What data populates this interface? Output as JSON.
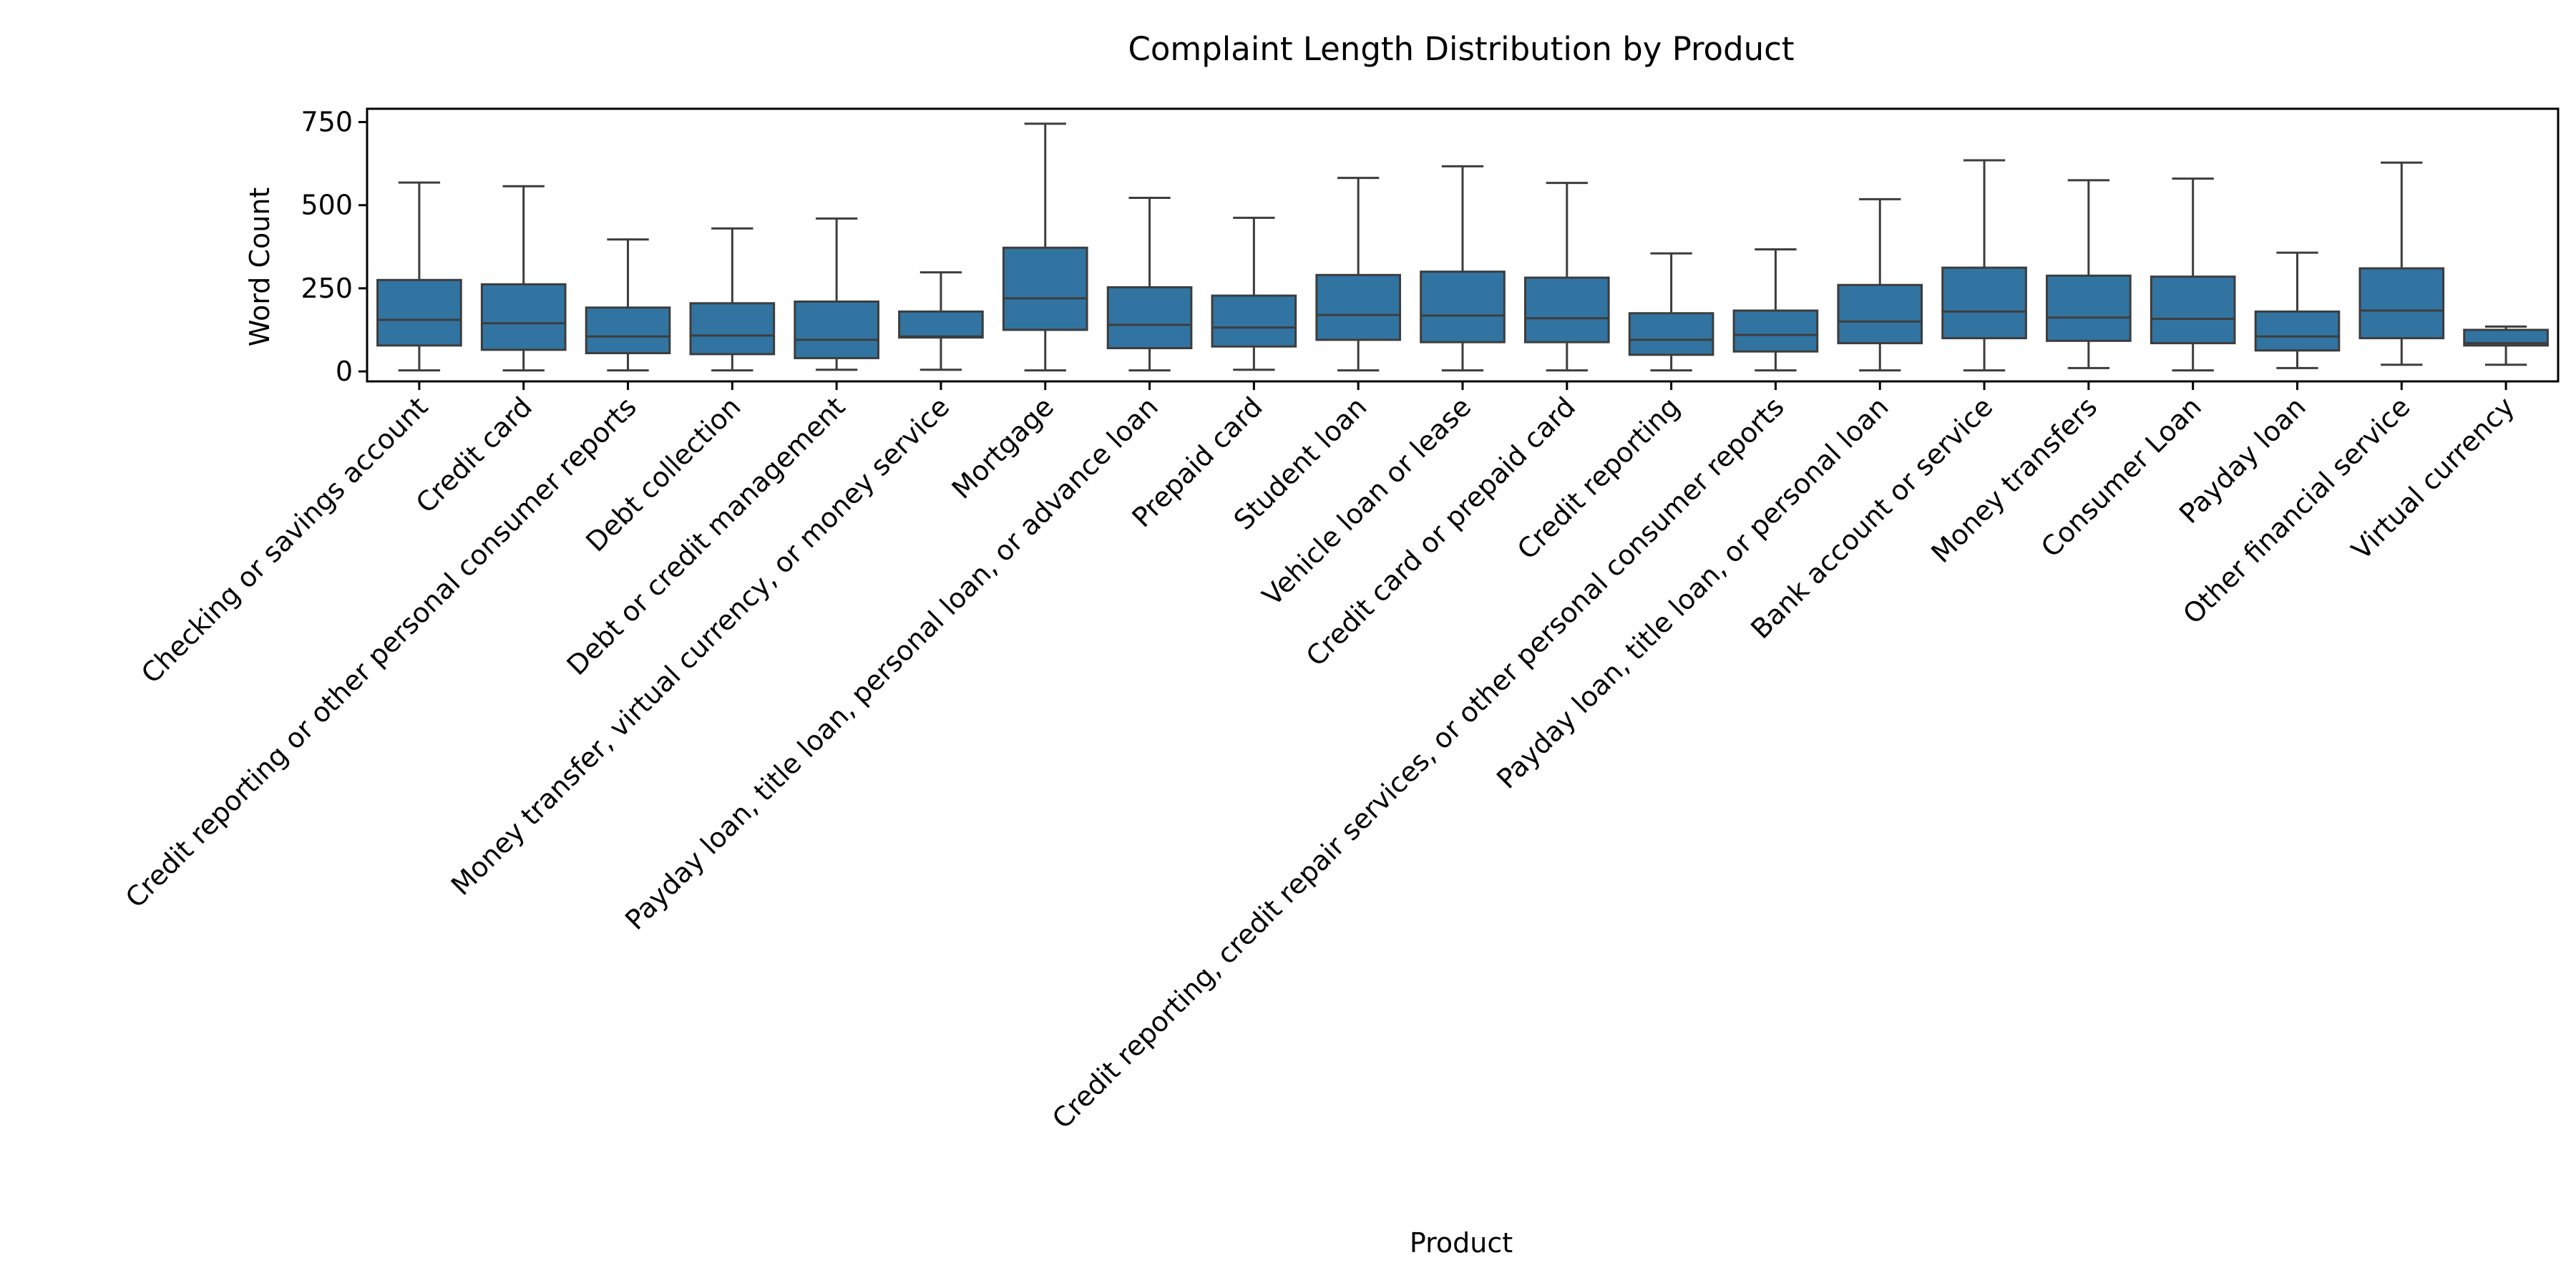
{
  "chart_data": {
    "type": "box",
    "title": "Complaint Length Distribution by Product",
    "xlabel": "Product",
    "ylabel": "Word Count",
    "ylim": [
      -30,
      790
    ],
    "yticks": [
      0,
      250,
      500,
      750
    ],
    "grid": false,
    "legend": "none",
    "box_color": "#3274a1",
    "line_color": "#3d3d3d",
    "categories": [
      "Checking or savings account",
      "Credit card",
      "Credit reporting or other personal consumer reports",
      "Debt collection",
      "Debt or credit management",
      "Money transfer, virtual currency, or money service",
      "Mortgage",
      "Payday loan, title loan, personal loan, or advance loan",
      "Prepaid card",
      "Student loan",
      "Vehicle loan or lease",
      "Credit card or prepaid card",
      "Credit reporting",
      "Credit reporting, credit repair services, or other personal consumer reports",
      "Payday loan, title loan, or personal loan",
      "Bank account or service",
      "Money transfers",
      "Consumer Loan",
      "Payday loan",
      "Other financial service",
      "Virtual currency"
    ],
    "boxes": [
      {
        "whislo": 3,
        "q1": 78,
        "med": 155,
        "q3": 275,
        "whishi": 568
      },
      {
        "whislo": 3,
        "q1": 65,
        "med": 145,
        "q3": 262,
        "whishi": 557
      },
      {
        "whislo": 3,
        "q1": 55,
        "med": 105,
        "q3": 192,
        "whishi": 397
      },
      {
        "whislo": 3,
        "q1": 52,
        "med": 108,
        "q3": 205,
        "whishi": 430
      },
      {
        "whislo": 5,
        "q1": 40,
        "med": 95,
        "q3": 210,
        "whishi": 460
      },
      {
        "whislo": 5,
        "q1": 102,
        "med": 105,
        "q3": 180,
        "whishi": 298
      },
      {
        "whislo": 3,
        "q1": 125,
        "med": 220,
        "q3": 372,
        "whishi": 745
      },
      {
        "whislo": 3,
        "q1": 70,
        "med": 140,
        "q3": 253,
        "whishi": 522
      },
      {
        "whislo": 5,
        "q1": 75,
        "med": 132,
        "q3": 228,
        "whishi": 462
      },
      {
        "whislo": 3,
        "q1": 95,
        "med": 170,
        "q3": 290,
        "whishi": 582
      },
      {
        "whislo": 3,
        "q1": 88,
        "med": 168,
        "q3": 300,
        "whishi": 617
      },
      {
        "whislo": 3,
        "q1": 88,
        "med": 160,
        "q3": 282,
        "whishi": 567
      },
      {
        "whislo": 3,
        "q1": 50,
        "med": 95,
        "q3": 175,
        "whishi": 355
      },
      {
        "whislo": 3,
        "q1": 60,
        "med": 110,
        "q3": 183,
        "whishi": 367
      },
      {
        "whislo": 3,
        "q1": 85,
        "med": 150,
        "q3": 260,
        "whishi": 518
      },
      {
        "whislo": 3,
        "q1": 100,
        "med": 180,
        "q3": 312,
        "whishi": 635
      },
      {
        "whislo": 10,
        "q1": 92,
        "med": 162,
        "q3": 288,
        "whishi": 575
      },
      {
        "whislo": 3,
        "q1": 85,
        "med": 158,
        "q3": 285,
        "whishi": 580
      },
      {
        "whislo": 10,
        "q1": 63,
        "med": 105,
        "q3": 180,
        "whishi": 357
      },
      {
        "whislo": 20,
        "q1": 100,
        "med": 183,
        "q3": 310,
        "whishi": 628
      },
      {
        "whislo": 20,
        "q1": 78,
        "med": 85,
        "q3": 125,
        "whishi": 135
      }
    ]
  }
}
